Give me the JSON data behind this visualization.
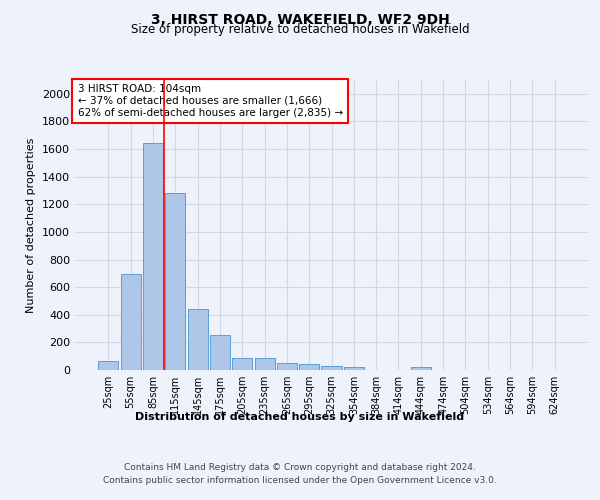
{
  "title": "3, HIRST ROAD, WAKEFIELD, WF2 9DH",
  "subtitle": "Size of property relative to detached houses in Wakefield",
  "xlabel": "Distribution of detached houses by size in Wakefield",
  "ylabel": "Number of detached properties",
  "categories": [
    "25sqm",
    "55sqm",
    "85sqm",
    "115sqm",
    "145sqm",
    "175sqm",
    "205sqm",
    "235sqm",
    "265sqm",
    "295sqm",
    "325sqm",
    "354sqm",
    "384sqm",
    "414sqm",
    "444sqm",
    "474sqm",
    "504sqm",
    "534sqm",
    "564sqm",
    "594sqm",
    "624sqm"
  ],
  "values": [
    65,
    695,
    1645,
    1285,
    445,
    255,
    90,
    90,
    50,
    40,
    30,
    25,
    0,
    0,
    20,
    0,
    0,
    0,
    0,
    0,
    0
  ],
  "bar_color": "#aec6e8",
  "bar_edge_color": "#5a9fd4",
  "grid_color": "#d0d8e8",
  "vline_color": "red",
  "annotation_text": "3 HIRST ROAD: 104sqm\n← 37% of detached houses are smaller (1,666)\n62% of semi-detached houses are larger (2,835) →",
  "annotation_box_color": "white",
  "annotation_box_edge_color": "red",
  "ylim": [
    0,
    2100
  ],
  "yticks": [
    0,
    200,
    400,
    600,
    800,
    1000,
    1200,
    1400,
    1600,
    1800,
    2000
  ],
  "footer_line1": "Contains HM Land Registry data © Crown copyright and database right 2024.",
  "footer_line2": "Contains public sector information licensed under the Open Government Licence v3.0.",
  "background_color": "#eef2fb"
}
